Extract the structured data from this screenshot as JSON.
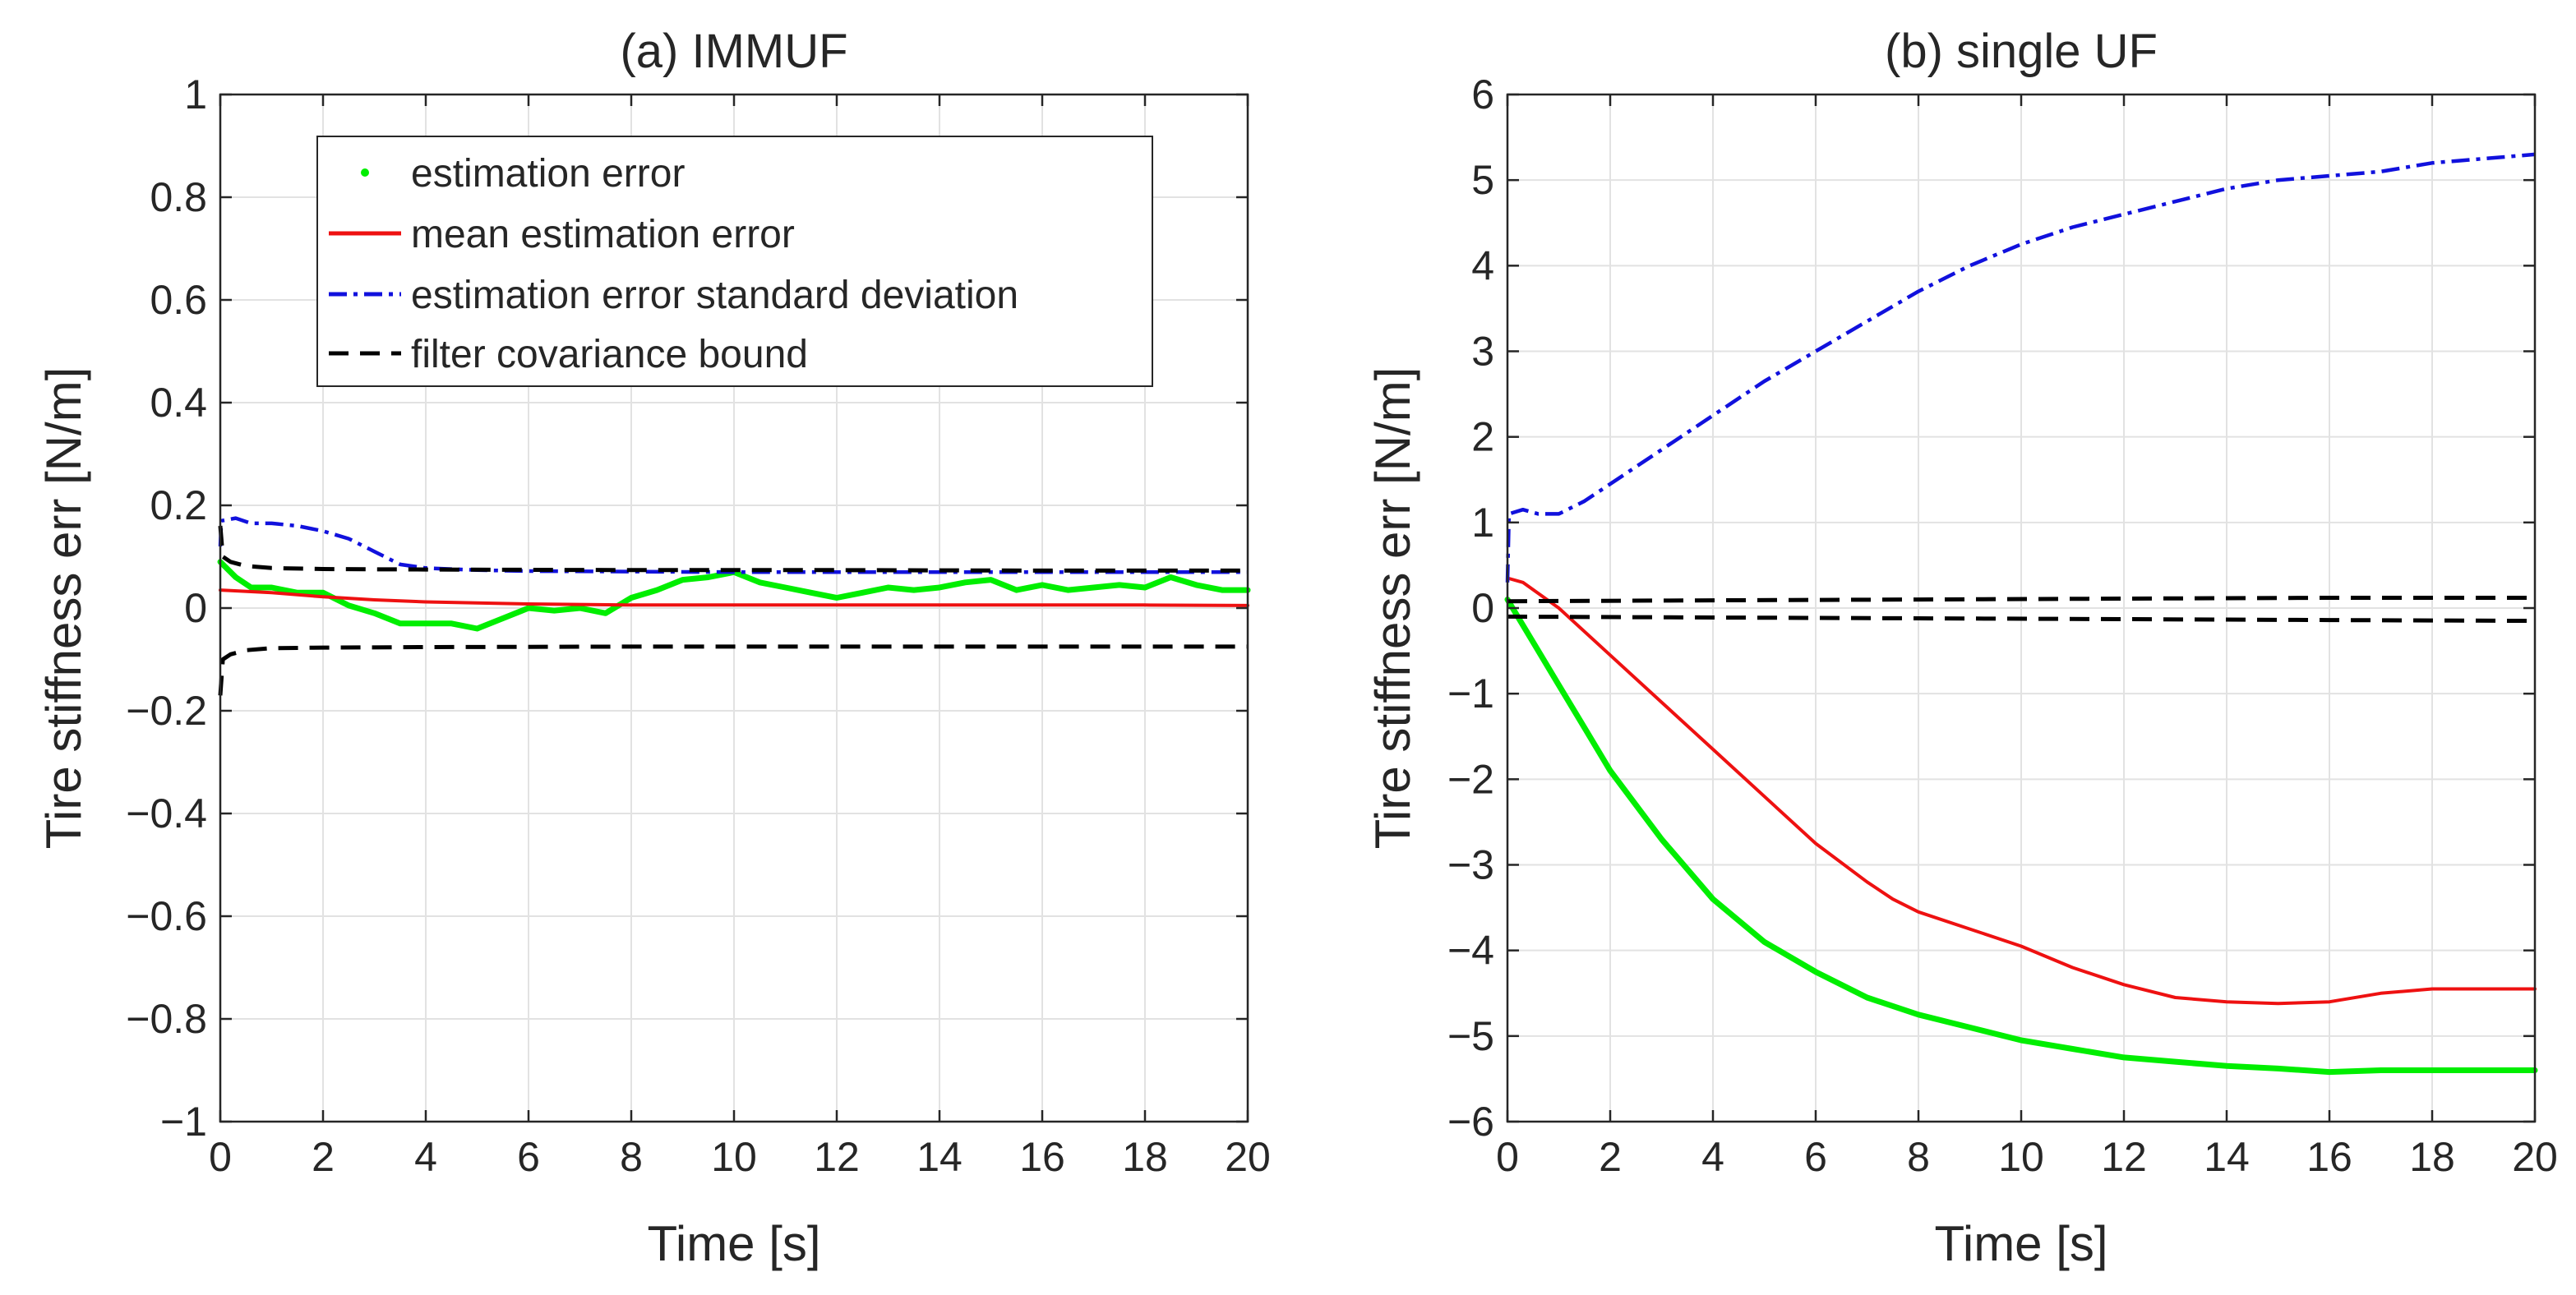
{
  "colors": {
    "estimation_error": "#00ee00",
    "mean_estimation_error": "#ee1111",
    "std_deviation": "#1111dd",
    "covariance_bound": "#000000",
    "grid": "#e2e2e2",
    "axis": "#262626"
  },
  "chart_data": [
    {
      "type": "line",
      "title": "(a) IMMUF",
      "xlabel": "Time [s]",
      "ylabel": "Tire stiffness err [N/m]",
      "xlim": [
        0,
        20
      ],
      "ylim": [
        -1,
        1
      ],
      "xticks": [
        0,
        2,
        4,
        6,
        8,
        10,
        12,
        14,
        16,
        18,
        20
      ],
      "xtick_labels": [
        "0",
        "2",
        "4",
        "6",
        "8",
        "10",
        "12",
        "14",
        "16",
        "18",
        "20"
      ],
      "yticks": [
        -1,
        -0.8,
        -0.6,
        -0.4,
        -0.2,
        0,
        0.2,
        0.4,
        0.6,
        0.8,
        1
      ],
      "ytick_labels": [
        "−1",
        "−0.8",
        "−0.6",
        "−0.4",
        "−0.2",
        "0",
        "0.2",
        "0.4",
        "0.6",
        "0.8",
        "1"
      ],
      "grid": true,
      "legend": {
        "location": "top-center",
        "entries": [
          {
            "label": "estimation error",
            "style": "dot",
            "series": "estimation_error"
          },
          {
            "label": "mean estimation error",
            "style": "solid",
            "series": "mean_estimation_error"
          },
          {
            "label": "estimation error standard deviation",
            "style": "dashdot",
            "series": "std_deviation"
          },
          {
            "label": "filter covariance bound",
            "style": "dashed",
            "series": "covariance_bound"
          }
        ]
      },
      "series": [
        {
          "name": "estimation error",
          "key": "estimation_error",
          "style": "dot",
          "x": [
            0,
            0.3,
            0.6,
            1,
            1.5,
            2,
            2.5,
            3,
            3.5,
            4,
            4.5,
            5,
            5.5,
            6,
            6.5,
            7,
            7.5,
            8,
            8.5,
            9,
            9.5,
            10,
            10.5,
            11,
            11.5,
            12,
            12.5,
            13,
            13.5,
            14,
            14.5,
            15,
            15.5,
            16,
            16.5,
            17,
            17.5,
            18,
            18.5,
            19,
            19.5,
            20
          ],
          "y": [
            0.09,
            0.06,
            0.04,
            0.04,
            0.03,
            0.03,
            0.005,
            -0.01,
            -0.03,
            -0.03,
            -0.03,
            -0.04,
            -0.02,
            0,
            -0.005,
            0,
            -0.01,
            0.02,
            0.035,
            0.055,
            0.06,
            0.07,
            0.05,
            0.04,
            0.03,
            0.02,
            0.03,
            0.04,
            0.035,
            0.04,
            0.05,
            0.055,
            0.035,
            0.045,
            0.035,
            0.04,
            0.045,
            0.04,
            0.06,
            0.045,
            0.035,
            0.035
          ]
        },
        {
          "name": "mean estimation error",
          "key": "mean_estimation_error",
          "style": "solid",
          "x": [
            0,
            1,
            2,
            3,
            4,
            6,
            8,
            10,
            12,
            14,
            16,
            18,
            20
          ],
          "y": [
            0.035,
            0.03,
            0.022,
            0.016,
            0.012,
            0.008,
            0.006,
            0.006,
            0.006,
            0.006,
            0.006,
            0.006,
            0.005
          ]
        },
        {
          "name": "estimation error standard deviation",
          "key": "std_deviation",
          "style": "dashdot",
          "x": [
            0,
            0.02,
            0.3,
            0.6,
            1,
            1.5,
            2,
            2.5,
            3,
            3.5,
            4,
            5,
            6,
            8,
            10,
            12,
            14,
            16,
            18,
            20
          ],
          "y": [
            0.12,
            0.17,
            0.175,
            0.165,
            0.165,
            0.16,
            0.15,
            0.135,
            0.11,
            0.085,
            0.078,
            0.074,
            0.072,
            0.071,
            0.07,
            0.07,
            0.07,
            0.07,
            0.07,
            0.07
          ]
        },
        {
          "name": "filter covariance bound (upper)",
          "key": "covariance_bound",
          "style": "dashed",
          "x": [
            0,
            0.05,
            0.2,
            0.5,
            1,
            2,
            4,
            8,
            12,
            16,
            20
          ],
          "y": [
            0.16,
            0.1,
            0.09,
            0.082,
            0.078,
            0.076,
            0.075,
            0.074,
            0.074,
            0.073,
            0.073
          ]
        },
        {
          "name": "filter covariance bound (lower)",
          "key": "covariance_bound",
          "style": "dashed",
          "x": [
            0,
            0.05,
            0.2,
            0.5,
            1,
            2,
            4,
            8,
            12,
            16,
            20
          ],
          "y": [
            -0.17,
            -0.1,
            -0.09,
            -0.082,
            -0.078,
            -0.077,
            -0.076,
            -0.075,
            -0.075,
            -0.075,
            -0.075
          ]
        }
      ]
    },
    {
      "type": "line",
      "title": "(b) single UF",
      "xlabel": "Time [s]",
      "ylabel": "Tire stiffness err [N/m]",
      "xlim": [
        0,
        20
      ],
      "ylim": [
        -6,
        6
      ],
      "xticks": [
        0,
        2,
        4,
        6,
        8,
        10,
        12,
        14,
        16,
        18,
        20
      ],
      "xtick_labels": [
        "0",
        "2",
        "4",
        "6",
        "8",
        "10",
        "12",
        "14",
        "16",
        "18",
        "20"
      ],
      "yticks": [
        -6,
        -5,
        -4,
        -3,
        -2,
        -1,
        0,
        1,
        2,
        3,
        4,
        5,
        6
      ],
      "ytick_labels": [
        "−6",
        "−5",
        "−4",
        "−3",
        "−2",
        "−1",
        "0",
        "1",
        "2",
        "3",
        "4",
        "5",
        "6"
      ],
      "grid": true,
      "series": [
        {
          "name": "estimation error",
          "key": "estimation_error",
          "style": "dot",
          "x": [
            0,
            0.5,
            1,
            1.5,
            2,
            3,
            4,
            5,
            6,
            7,
            8,
            9,
            10,
            11,
            12,
            13,
            14,
            15,
            16,
            17,
            18,
            19,
            20
          ],
          "y": [
            0.1,
            -0.4,
            -0.9,
            -1.4,
            -1.9,
            -2.7,
            -3.4,
            -3.9,
            -4.25,
            -4.55,
            -4.75,
            -4.9,
            -5.05,
            -5.15,
            -5.25,
            -5.3,
            -5.35,
            -5.38,
            -5.42,
            -5.4,
            -5.4,
            -5.4,
            -5.4
          ]
        },
        {
          "name": "mean estimation error",
          "key": "mean_estimation_error",
          "style": "solid",
          "x": [
            0,
            0.3,
            1,
            2,
            3,
            4,
            5,
            6,
            7,
            7.5,
            8,
            9,
            10,
            11,
            12,
            13,
            14,
            15,
            16,
            17,
            18,
            19,
            20
          ],
          "y": [
            0.35,
            0.3,
            0.0,
            -0.55,
            -1.1,
            -1.65,
            -2.2,
            -2.75,
            -3.2,
            -3.4,
            -3.55,
            -3.75,
            -3.95,
            -4.2,
            -4.4,
            -4.55,
            -4.6,
            -4.62,
            -4.6,
            -4.5,
            -4.45,
            -4.45,
            -4.45
          ]
        },
        {
          "name": "estimation error standard deviation",
          "key": "std_deviation",
          "style": "dashdot",
          "x": [
            0,
            0.03,
            0.3,
            0.6,
            1,
            1.5,
            2,
            3,
            4,
            5,
            6,
            7,
            8,
            9,
            10,
            11,
            12,
            13,
            14,
            15,
            16,
            17,
            18,
            19,
            20
          ],
          "y": [
            0.3,
            1.1,
            1.15,
            1.1,
            1.1,
            1.25,
            1.45,
            1.85,
            2.25,
            2.65,
            3.0,
            3.35,
            3.7,
            4.0,
            4.25,
            4.45,
            4.6,
            4.75,
            4.9,
            5.0,
            5.05,
            5.1,
            5.2,
            5.25,
            5.3
          ]
        },
        {
          "name": "filter covariance bound (upper)",
          "key": "covariance_bound",
          "style": "dashed",
          "x": [
            0,
            4,
            8,
            12,
            16,
            20
          ],
          "y": [
            0.08,
            0.09,
            0.1,
            0.11,
            0.12,
            0.12
          ]
        },
        {
          "name": "filter covariance bound (lower)",
          "key": "covariance_bound",
          "style": "dashed",
          "x": [
            0,
            4,
            8,
            12,
            16,
            20
          ],
          "y": [
            -0.1,
            -0.11,
            -0.12,
            -0.13,
            -0.14,
            -0.15
          ]
        }
      ]
    }
  ]
}
